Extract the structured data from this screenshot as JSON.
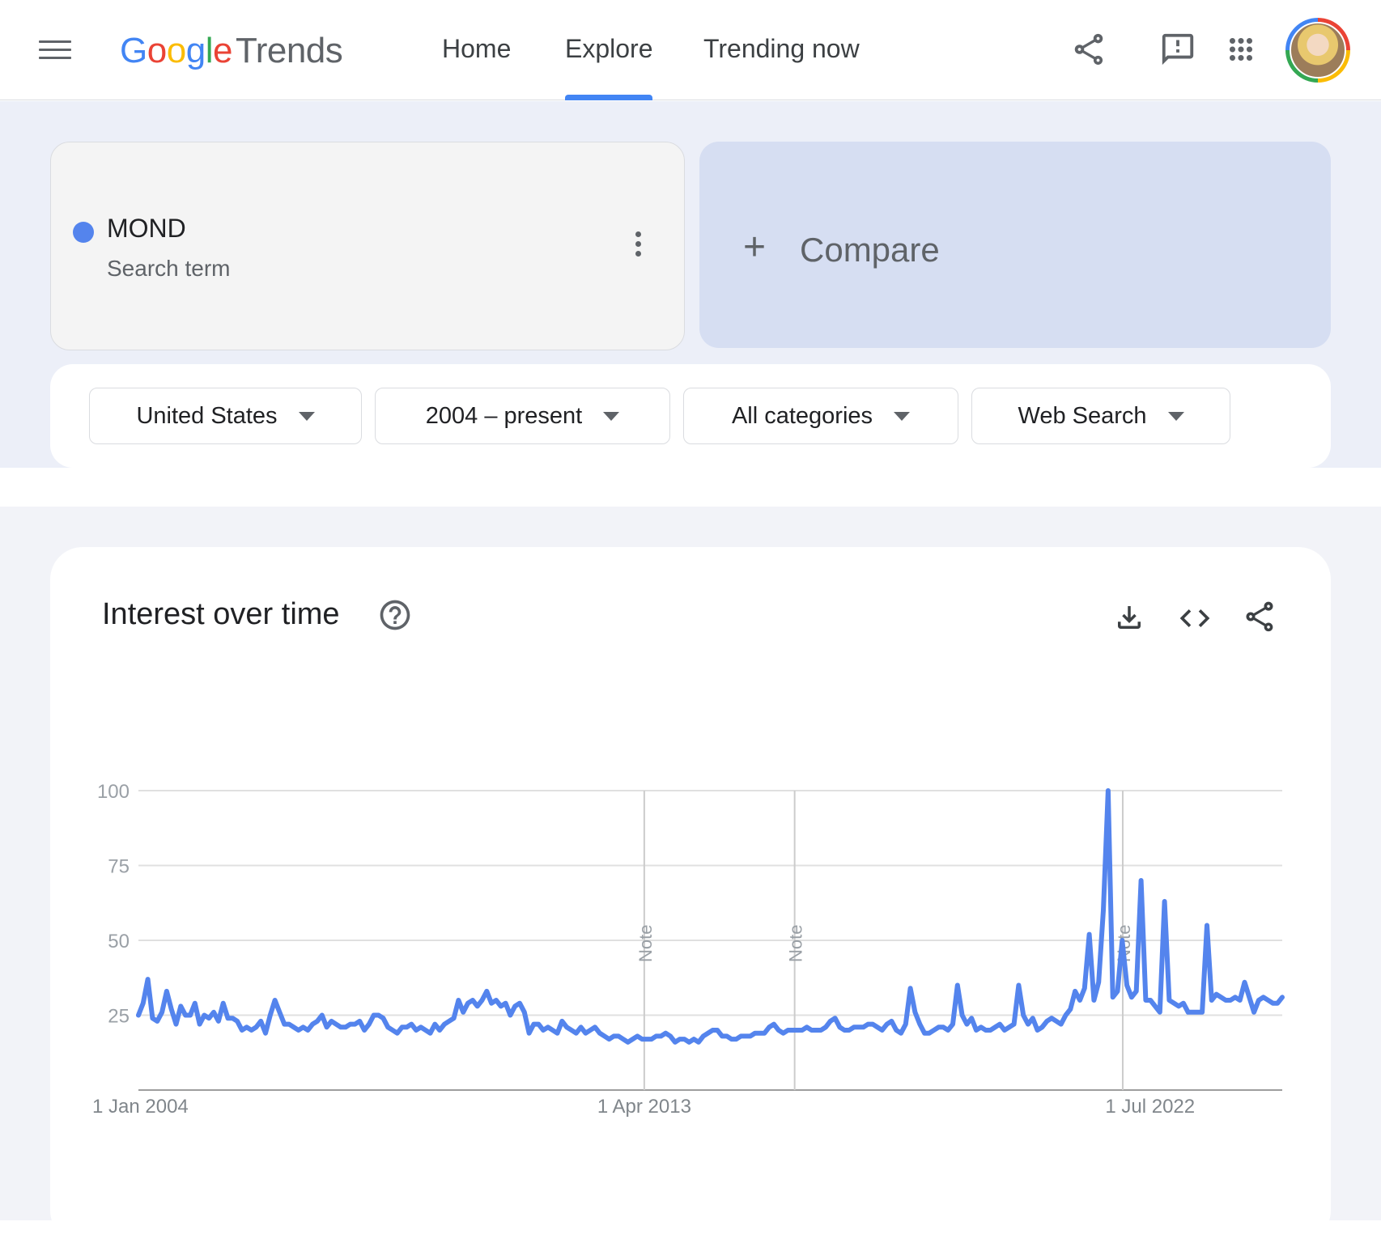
{
  "header": {
    "logo_google": "Google",
    "logo_product": "Trends",
    "nav": [
      {
        "label": "Home",
        "active": false
      },
      {
        "label": "Explore",
        "active": true
      },
      {
        "label": "Trending now",
        "active": false
      }
    ],
    "icons": [
      "menu-icon",
      "share-icon",
      "feedback-icon",
      "apps-grid-icon",
      "account-avatar"
    ]
  },
  "search_term": {
    "name": "MOND",
    "type": "Search term",
    "color": "#5484ed"
  },
  "compare": {
    "label": "Compare"
  },
  "filters": [
    {
      "label": "United States"
    },
    {
      "label": "2004 – present"
    },
    {
      "label": "All categories"
    },
    {
      "label": "Web Search"
    }
  ],
  "chart_section": {
    "title": "Interest over time",
    "icons": [
      "help-icon",
      "download-icon",
      "embed-code-icon",
      "share-icon"
    ]
  },
  "chart_data": {
    "type": "line",
    "ylim": [
      0,
      100
    ],
    "y_ticks": [
      25,
      50,
      75,
      100
    ],
    "x_tick_labels": [
      "1 Jan 2004",
      "1 Apr 2013",
      "1 Jul 2022"
    ],
    "x_range": [
      "2004-01",
      "2024-12"
    ],
    "grid": true,
    "note_label": "Note",
    "notes": [
      "2013-04",
      "2016-01",
      "2022-01"
    ],
    "series": [
      {
        "color": "#5484ed",
        "values": [
          25,
          29,
          37,
          24,
          23,
          26,
          33,
          27,
          22,
          28,
          25,
          25,
          29,
          22,
          25,
          24,
          26,
          23,
          29,
          24,
          24,
          23,
          20,
          21,
          20,
          21,
          23,
          19,
          25,
          30,
          26,
          22,
          22,
          21,
          20,
          21,
          20,
          22,
          23,
          25,
          21,
          23,
          22,
          21,
          21,
          22,
          22,
          23,
          20,
          22,
          25,
          25,
          24,
          21,
          20,
          19,
          21,
          21,
          22,
          20,
          21,
          20,
          19,
          22,
          20,
          22,
          23,
          24,
          30,
          26,
          29,
          30,
          28,
          30,
          33,
          29,
          30,
          28,
          29,
          25,
          28,
          29,
          26,
          19,
          22,
          22,
          20,
          21,
          20,
          19,
          23,
          21,
          20,
          19,
          21,
          19,
          20,
          21,
          19,
          18,
          17,
          18,
          18,
          17,
          16,
          17,
          18,
          17,
          17,
          17,
          18,
          18,
          19,
          18,
          16,
          17,
          17,
          16,
          17,
          16,
          18,
          19,
          20,
          20,
          18,
          18,
          17,
          17,
          18,
          18,
          18,
          19,
          19,
          19,
          21,
          22,
          20,
          19,
          20,
          20,
          20,
          20,
          21,
          20,
          20,
          20,
          21,
          23,
          24,
          21,
          20,
          20,
          21,
          21,
          21,
          22,
          22,
          21,
          20,
          22,
          23,
          20,
          19,
          22,
          34,
          26,
          22,
          19,
          19,
          20,
          21,
          21,
          20,
          22,
          35,
          25,
          22,
          24,
          20,
          21,
          20,
          20,
          21,
          22,
          20,
          21,
          22,
          35,
          25,
          22,
          24,
          20,
          21,
          23,
          24,
          23,
          22,
          25,
          27,
          33,
          30,
          34,
          52,
          30,
          36,
          60,
          100,
          31,
          33,
          50,
          35,
          31,
          33,
          70,
          30,
          30,
          28,
          26,
          63,
          30,
          29,
          28,
          29,
          26,
          26,
          26,
          26,
          55,
          30,
          32,
          31,
          30,
          30,
          31,
          30,
          36,
          31,
          26,
          30,
          31,
          30,
          29,
          29,
          31
        ]
      }
    ]
  }
}
